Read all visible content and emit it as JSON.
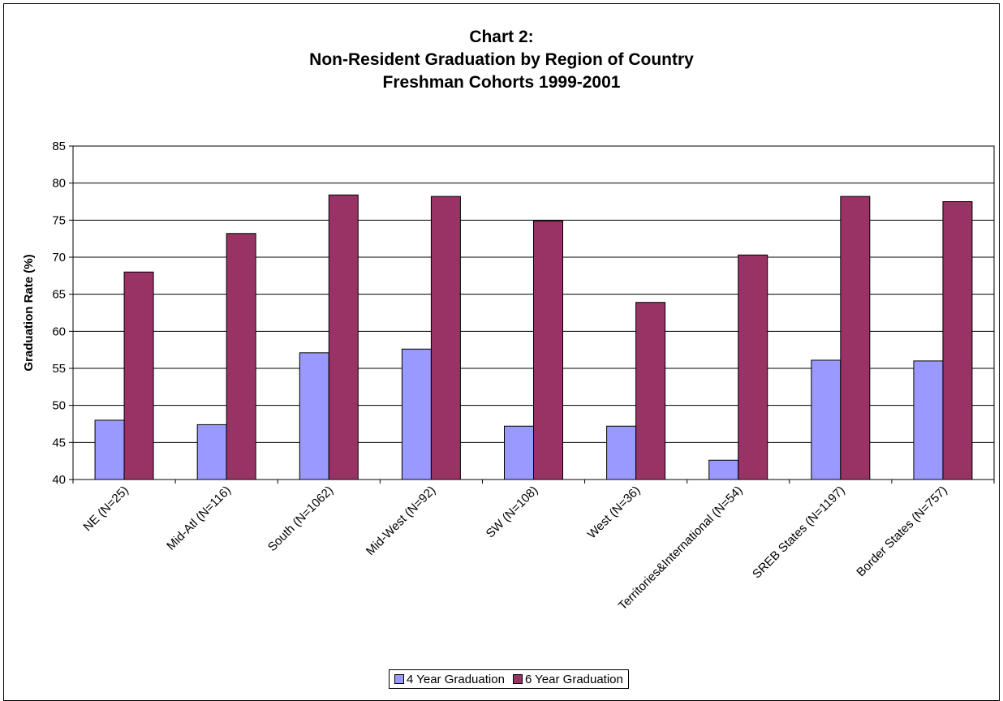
{
  "chart_data": {
    "type": "bar",
    "title_lines": [
      "Chart 2:",
      "Non-Resident Graduation by Region of Country",
      "Freshman Cohorts 1999-2001"
    ],
    "xlabel": "",
    "ylabel": "Graduation Rate (%)",
    "ylim": [
      40,
      85
    ],
    "yticks": [
      40,
      45,
      50,
      55,
      60,
      65,
      70,
      75,
      80,
      85
    ],
    "grid": true,
    "legend_position": "bottom",
    "categories": [
      "NE (N=25)",
      "Mid-Atl (N=116)",
      "South (N=1062)",
      "Mid-West (N=92)",
      "SW (N=108)",
      "West (N=36)",
      "Territories&International (N=54)",
      "SREB States (N=1197)",
      "Border States (N=757)"
    ],
    "series": [
      {
        "name": "4 Year Graduation",
        "color": "#9999ff",
        "values": [
          48.0,
          47.4,
          57.1,
          57.6,
          47.2,
          47.2,
          42.6,
          56.1,
          56.0
        ]
      },
      {
        "name": "6 Year Graduation",
        "color": "#993366",
        "values": [
          68.0,
          73.2,
          78.4,
          78.2,
          74.9,
          63.9,
          70.3,
          78.2,
          77.5
        ]
      }
    ]
  }
}
